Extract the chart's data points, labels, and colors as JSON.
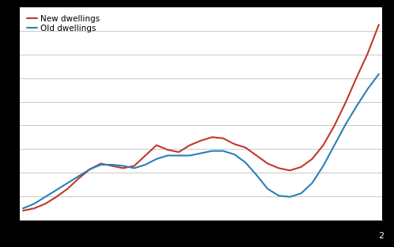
{
  "new_dwellings": [
    100,
    102,
    106,
    112,
    119,
    128,
    136,
    141,
    139,
    137,
    139,
    148,
    157,
    153,
    151,
    157,
    161,
    164,
    163,
    158,
    155,
    148,
    141,
    137,
    135,
    138,
    145,
    157,
    174,
    194,
    216,
    237,
    262
  ],
  "old_dwellings": [
    102,
    106,
    112,
    118,
    124,
    130,
    136,
    140,
    140,
    139,
    137,
    140,
    145,
    148,
    148,
    148,
    150,
    152,
    152,
    149,
    142,
    131,
    119,
    113,
    112,
    115,
    124,
    139,
    157,
    175,
    191,
    206,
    219
  ],
  "line_color_new": "#c0392b",
  "line_color_old": "#2980b9",
  "legend_new": "New dwellings",
  "legend_old": "Old dwellings",
  "outer_bg": "#000000",
  "chart_bg": "#ffffff",
  "grid_color": "#c8c8c8",
  "n_points": 33,
  "linewidth": 1.5,
  "legend_fontsize": 7.5,
  "n_gridlines": 9,
  "bottom_label": "2"
}
